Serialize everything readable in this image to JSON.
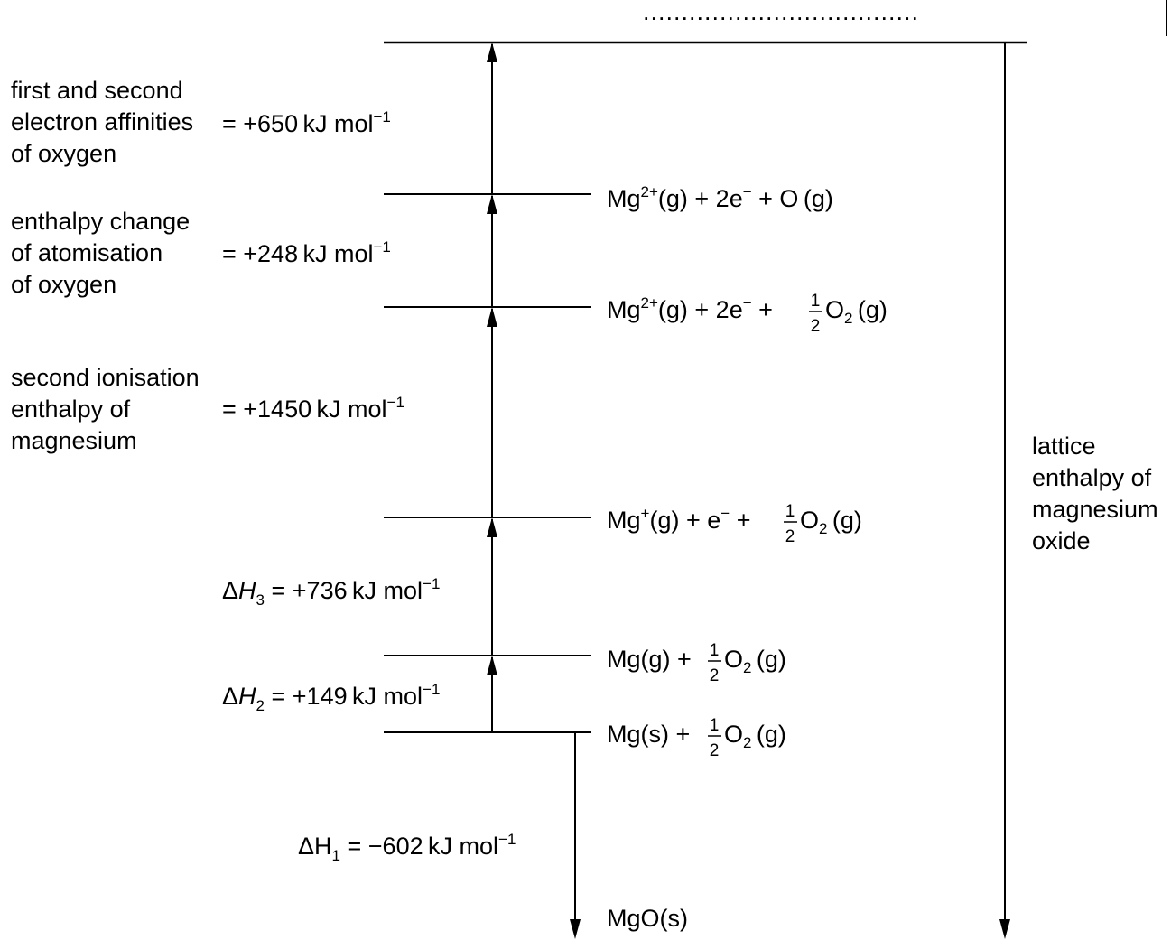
{
  "answer_line": "....................................",
  "levels": {
    "mg2_o_g": {
      "species": "Mg",
      "charge": "2+",
      "rest": "(g) + 2e",
      "minus": "−",
      "tail": " + O (g)"
    },
    "mg2_halfo2": {
      "species": "Mg",
      "charge": "2+",
      "rest": "(g) + 2e",
      "minus": "−",
      "plus": " + ",
      "frac_num": "1",
      "frac_den": "2",
      "o": "O",
      "sub": "2",
      "tail": " (g)"
    },
    "mg1_halfo2": {
      "species": "Mg",
      "charge": "+",
      "rest": "(g) + e",
      "minus": "−",
      "plus": " + ",
      "frac_num": "1",
      "frac_den": "2",
      "o": "O",
      "sub": "2",
      "tail": " (g)"
    },
    "mg_g": {
      "text": "Mg(g) + ",
      "frac_num": "1",
      "frac_den": "2",
      "o": "O",
      "sub": "2",
      "tail": " (g)"
    },
    "mg_s": {
      "text": "Mg(s) + ",
      "frac_num": "1",
      "frac_den": "2",
      "o": "O",
      "sub": "2",
      "tail": " (g)"
    },
    "mgo_s": {
      "text": "MgO(s)"
    }
  },
  "steps": {
    "electron_affinity": {
      "lines": [
        "first and second",
        "electron affinities",
        "of oxygen"
      ],
      "value": "= +650 kJ mol",
      "exp": "−1"
    },
    "atomisation": {
      "lines": [
        "enthalpy change",
        "of atomisation",
        "of oxygen"
      ],
      "value": "= +248 kJ mol",
      "exp": "−1"
    },
    "second_ionisation": {
      "lines": [
        "second ionisation",
        "enthalpy of",
        "magnesium"
      ],
      "value": "= +1450 kJ mol",
      "exp": "−1"
    },
    "dh3": {
      "delta": "Δ",
      "symbol": "H",
      "sub": "3",
      "value": " = +736 kJ mol",
      "exp": "−1"
    },
    "dh2": {
      "delta": "Δ",
      "symbol": "H",
      "sub": "2",
      "value": " = +149 kJ mol",
      "exp": "−1"
    },
    "dh1": {
      "delta": "Δ",
      "symbol": "H",
      "sub": "1",
      "value": " = −602 kJ mol",
      "exp": "−1"
    },
    "lattice": {
      "lines": [
        "lattice",
        "enthalpy of",
        "magnesium",
        "oxide"
      ]
    }
  }
}
